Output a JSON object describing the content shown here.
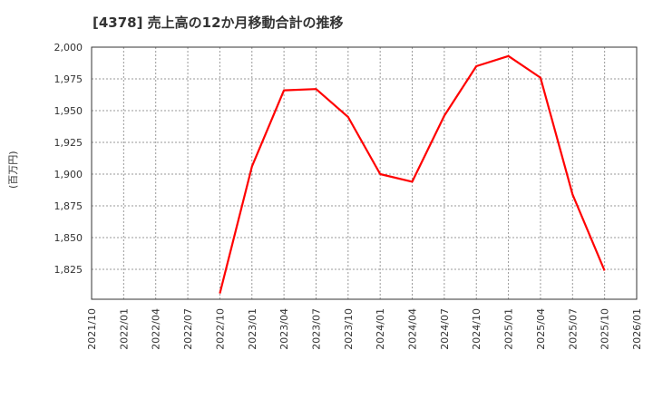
{
  "title": "[4378]  売上高の12か月移動合計の推移",
  "y_axis_label": "(百万円)",
  "colors": {
    "line": "#ff0000",
    "axis": "#333333",
    "grid": "#999999",
    "text": "#333333"
  },
  "chart_data": {
    "type": "line",
    "title": "[4378]  売上高の12か月移動合計の推移",
    "xlabel": "",
    "ylabel": "(百万円)",
    "ylim": [
      1801,
      2000
    ],
    "yticks": [
      1825,
      1850,
      1875,
      1900,
      1925,
      1950,
      1975,
      2000
    ],
    "ytick_labels": [
      "1,825",
      "1,850",
      "1,875",
      "1,900",
      "1,925",
      "1,950",
      "1,975",
      "2,000"
    ],
    "xtick_labels": [
      "2021/10",
      "2022/01",
      "2022/04",
      "2022/07",
      "2022/10",
      "2023/01",
      "2023/04",
      "2023/07",
      "2023/10",
      "2024/01",
      "2024/04",
      "2024/07",
      "2024/10",
      "2025/01",
      "2025/04",
      "2025/07",
      "2025/10",
      "2026/01"
    ],
    "grid": true,
    "legend": "none",
    "series": [
      {
        "name": "売上高(12か月移動合計)",
        "x": [
          "2022/10",
          "2023/01",
          "2023/04",
          "2023/07",
          "2023/10",
          "2024/01",
          "2024/04",
          "2024/07",
          "2024/10",
          "2025/01",
          "2025/04",
          "2025/07",
          "2025/10"
        ],
        "values": [
          1806,
          1906,
          1966,
          1967,
          1945,
          1900,
          1894,
          1946,
          1985,
          1993,
          1976,
          1884,
          1824
        ]
      }
    ]
  }
}
